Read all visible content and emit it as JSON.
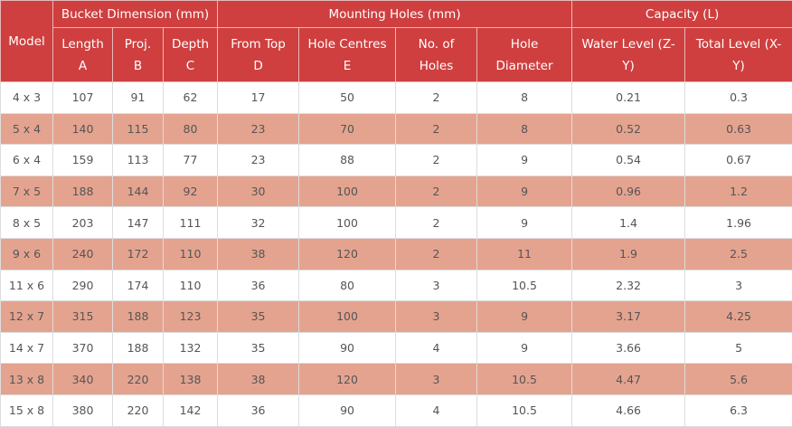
{
  "table": {
    "model_header": "Model",
    "groups": [
      {
        "title": "Bucket Dimension (mm)",
        "span": 3
      },
      {
        "title": "Mounting Holes (mm)",
        "span": 4
      },
      {
        "title": "Capacity (L)",
        "span": 2
      }
    ],
    "columns": [
      [
        "Length",
        "A"
      ],
      [
        "Proj.",
        "B"
      ],
      [
        "Depth",
        "C"
      ],
      [
        "From Top",
        "D"
      ],
      [
        "Hole Centres",
        "E"
      ],
      [
        "No. of",
        "Holes"
      ],
      [
        "Hole",
        "Diameter"
      ],
      [
        "Water Level (Z-",
        "Y)"
      ],
      [
        "Total Level (X-",
        "Y)"
      ]
    ],
    "rows": [
      [
        "4 x 3",
        107,
        91,
        62,
        17,
        50,
        2,
        8,
        0.21,
        0.3
      ],
      [
        "5 x 4",
        140,
        115,
        80,
        23,
        70,
        2,
        8,
        0.52,
        0.63
      ],
      [
        "6 x 4",
        159,
        113,
        77,
        23,
        88,
        2,
        9,
        0.54,
        0.67
      ],
      [
        "7 x 5",
        188,
        144,
        92,
        30,
        100,
        2,
        9,
        0.96,
        1.2
      ],
      [
        "8 x 5",
        203,
        147,
        111,
        32,
        100,
        2,
        9,
        1.4,
        1.96
      ],
      [
        "9 x 6",
        240,
        172,
        110,
        38,
        120,
        2,
        11,
        1.9,
        2.5
      ],
      [
        "11 x 6",
        290,
        174,
        110,
        36,
        80,
        3,
        10.5,
        2.32,
        3
      ],
      [
        "12 x 7",
        315,
        188,
        123,
        35,
        100,
        3,
        9,
        3.17,
        4.25
      ],
      [
        "14 x 7",
        370,
        188,
        132,
        35,
        90,
        4,
        9,
        3.66,
        5
      ],
      [
        "13 x 8",
        340,
        220,
        138,
        38,
        120,
        3,
        10.5,
        4.47,
        5.6
      ],
      [
        "15 x 8",
        380,
        220,
        142,
        36,
        90,
        4,
        10.5,
        4.66,
        6.3
      ]
    ]
  }
}
